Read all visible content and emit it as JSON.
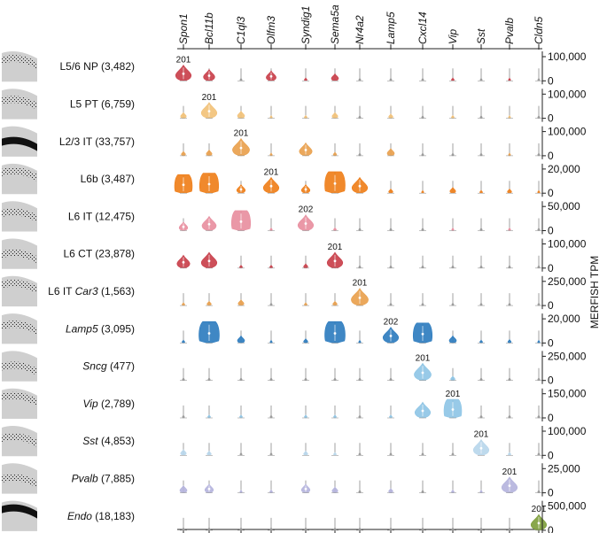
{
  "chart_data": {
    "type": "violin-grid",
    "axis_title": "MERFISH TPM",
    "genes": [
      {
        "name": "Spon1",
        "color": "#c9404b"
      },
      {
        "name": "Bcl11b",
        "color": "#c9404b"
      },
      {
        "name": "C1ql3",
        "color": "#e9a14e"
      },
      {
        "name": "Olfm3",
        "color": "#ef7f1a"
      },
      {
        "name": "Syndig1",
        "color": "#e88fa0"
      },
      {
        "name": "Sema5a",
        "color": "#c9404b"
      },
      {
        "name": "Nr4a2",
        "color": "#ef7f1a"
      },
      {
        "name": "Lamp5",
        "color": "#2f7dbf"
      },
      {
        "name": "Cxcl14",
        "color": "#2f7dbf"
      },
      {
        "name": "Vip",
        "color": "#8fc6e6"
      },
      {
        "name": "Sst",
        "color": "#b9d7ec"
      },
      {
        "name": "Pvalb",
        "color": "#b5b4dd"
      },
      {
        "name": "Cldn5",
        "color": "#7f9f3d"
      }
    ],
    "rows": [
      {
        "name": "L5/6 NP",
        "count": "(3,482)",
        "italic": false,
        "color": "#c9404b",
        "ticks": [
          "100,000",
          "0"
        ],
        "marker": "201",
        "marker_col": 0,
        "sizes": [
          0.55,
          0.4,
          0.05,
          0.35,
          0.1,
          0.25,
          0.02,
          0.02,
          0.02,
          0.1,
          0.02,
          0.08,
          0.02
        ]
      },
      {
        "name": "L5 PT",
        "count": "(6,759)",
        "italic": false,
        "color": "#f2c27a",
        "ticks": [
          "100,000",
          "0"
        ],
        "marker": "201",
        "marker_col": 1,
        "sizes": [
          0.2,
          0.55,
          0.25,
          0.08,
          0.1,
          0.2,
          0.02,
          0.15,
          0.02,
          0.1,
          0.02,
          0.06,
          0.02
        ]
      },
      {
        "name": "L2/3 IT",
        "count": "(33,757)",
        "italic": false,
        "color": "#e9a14e",
        "ticks": [
          "100,000",
          "0"
        ],
        "marker": "201",
        "marker_col": 2,
        "sizes": [
          0.15,
          0.2,
          0.6,
          0.08,
          0.45,
          0.12,
          0.02,
          0.25,
          0.02,
          0.04,
          0.02,
          0.06,
          0.02
        ]
      },
      {
        "name": "L6b",
        "count": "(3,487)",
        "italic": false,
        "color": "#ef7f1a",
        "ticks": [
          "20,000",
          "0"
        ],
        "marker": "201",
        "marker_col": 3,
        "sizes": [
          0.65,
          0.7,
          0.3,
          0.55,
          0.3,
          0.75,
          0.55,
          0.15,
          0.08,
          0.2,
          0.1,
          0.15,
          0.08
        ]
      },
      {
        "name": "L6 IT",
        "count": "(12,475)",
        "italic": false,
        "color": "#e88fa0",
        "ticks": [
          "50,000",
          "0"
        ],
        "marker": "202",
        "marker_col": 4,
        "sizes": [
          0.3,
          0.5,
          0.7,
          0.08,
          0.55,
          0.1,
          0.02,
          0.02,
          0.02,
          0.06,
          0.02,
          0.08,
          0.02
        ]
      },
      {
        "name": "L6 CT",
        "count": "(23,878)",
        "italic": false,
        "color": "#c9404b",
        "ticks": [
          "100,000",
          "0"
        ],
        "marker": "201",
        "marker_col": 5,
        "sizes": [
          0.45,
          0.55,
          0.1,
          0.1,
          0.15,
          0.55,
          0.02,
          0.02,
          0.02,
          0.02,
          0.02,
          0.04,
          0.02
        ]
      },
      {
        "name": "L6 IT ",
        "name_italic": "Car3",
        "count": "(1,563)",
        "italic": false,
        "color": "#e9a14e",
        "ticks": [
          "250,000",
          "0"
        ],
        "marker": "201",
        "marker_col": 6,
        "sizes": [
          0.1,
          0.15,
          0.2,
          0.02,
          0.1,
          0.15,
          0.6,
          0.02,
          0.02,
          0.02,
          0.02,
          0.02,
          0.02
        ]
      },
      {
        "name": "Lamp5",
        "count": "(3,095)",
        "italic": true,
        "color": "#2f7dbf",
        "ticks": [
          "20,000",
          "0"
        ],
        "marker": "202",
        "marker_col": 7,
        "sizes": [
          0.1,
          0.75,
          0.25,
          0.08,
          0.15,
          0.75,
          0.08,
          0.55,
          0.7,
          0.25,
          0.1,
          0.12,
          0.08
        ]
      },
      {
        "name": "Sncg",
        "count": "(477)",
        "italic": true,
        "color": "#8fc6e6",
        "ticks": [
          "250,000",
          "0"
        ],
        "marker": "201",
        "marker_col": 8,
        "sizes": [
          0.02,
          0.04,
          0.02,
          0.02,
          0.02,
          0.02,
          0.02,
          0.02,
          0.6,
          0.15,
          0.02,
          0.02,
          0.02
        ]
      },
      {
        "name": "Vip",
        "count": "(2,789)",
        "italic": true,
        "color": "#8fc6e6",
        "ticks": [
          "150,000",
          "0"
        ],
        "marker": "201",
        "marker_col": 9,
        "sizes": [
          0.05,
          0.1,
          0.1,
          0.02,
          0.1,
          0.1,
          0.02,
          0.1,
          0.55,
          0.65,
          0.04,
          0.04,
          0.02
        ]
      },
      {
        "name": "Sst",
        "count": "(4,853)",
        "italic": true,
        "color": "#b9d7ec",
        "ticks": [
          "100,000",
          "0"
        ],
        "marker": "201",
        "marker_col": 10,
        "sizes": [
          0.2,
          0.15,
          0.05,
          0.05,
          0.15,
          0.1,
          0.02,
          0.02,
          0.02,
          0.02,
          0.55,
          0.1,
          0.02
        ]
      },
      {
        "name": "Pvalb",
        "count": "(7,885)",
        "italic": true,
        "color": "#b5b4dd",
        "ticks": [
          "25,000",
          "0"
        ],
        "marker": "201",
        "marker_col": 11,
        "sizes": [
          0.25,
          0.3,
          0.08,
          0.1,
          0.3,
          0.2,
          0.04,
          0.15,
          0.04,
          0.1,
          0.08,
          0.55,
          0.02
        ]
      },
      {
        "name": "Endo",
        "count": "(18,183)",
        "italic": true,
        "color": "#7f9f3d",
        "ticks": [
          "500,000",
          "0"
        ],
        "marker": "201",
        "marker_col": 12,
        "sizes": [
          0.05,
          0.05,
          0.05,
          0.05,
          0.05,
          0.05,
          0.05,
          0.05,
          0.05,
          0.05,
          0.05,
          0.05,
          0.55
        ]
      }
    ]
  }
}
